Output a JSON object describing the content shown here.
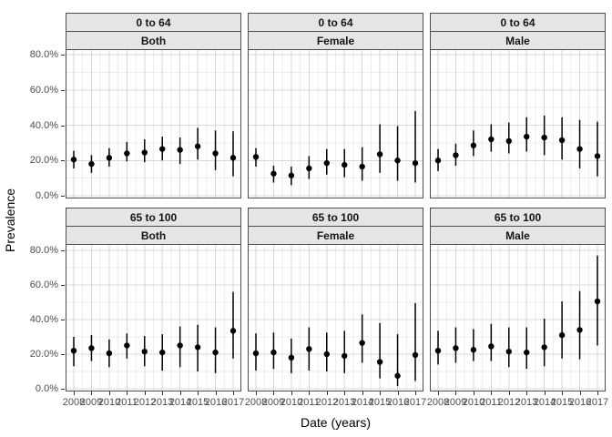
{
  "chart_data": {
    "type": "scatter",
    "subtype": "point-range (point estimate with vertical error bar)",
    "xlabel": "Date (years)",
    "ylabel": "Prevalence",
    "x_labels": [
      "2008",
      "2009",
      "2010",
      "2011",
      "2012",
      "2013",
      "2014",
      "2015",
      "2016",
      "2017"
    ],
    "y_tick_labels": [
      "80.0%",
      "60.0%",
      "40.0%",
      "20.0%",
      "0.0%"
    ],
    "ylim": [
      0,
      80
    ],
    "y_unit": "percent",
    "grid": "on",
    "legend": "none",
    "facet_row_labels": [
      "0 to 64",
      "65 to 100"
    ],
    "facet_col_labels": [
      "Both",
      "Female",
      "Male"
    ],
    "facets": [
      {
        "age_group": "0 to 64",
        "sex": "Both",
        "years": [
          2008,
          2009,
          2010,
          2011,
          2012,
          2013,
          2014,
          2015,
          2016,
          2017
        ],
        "values": [
          20.5,
          18.0,
          21.5,
          24.0,
          24.5,
          26.5,
          26.0,
          28.0,
          24.0,
          21.5
        ],
        "lower": [
          15.5,
          13.0,
          16.5,
          19.5,
          19.0,
          20.0,
          18.0,
          20.5,
          14.5,
          11.0
        ],
        "upper": [
          25.5,
          23.0,
          27.0,
          30.5,
          32.0,
          33.5,
          33.0,
          38.5,
          37.0,
          36.5
        ]
      },
      {
        "age_group": "0 to 64",
        "sex": "Female",
        "years": [
          2008,
          2009,
          2010,
          2011,
          2012,
          2013,
          2014,
          2015,
          2016,
          2017
        ],
        "values": [
          22.0,
          12.5,
          11.5,
          15.5,
          18.5,
          17.5,
          16.5,
          23.5,
          20.0,
          18.5
        ],
        "lower": [
          16.5,
          7.5,
          6.0,
          9.5,
          12.0,
          10.5,
          8.5,
          13.0,
          8.5,
          7.5
        ],
        "upper": [
          27.0,
          17.0,
          16.5,
          22.5,
          26.5,
          26.5,
          27.5,
          40.5,
          39.5,
          48.0
        ]
      },
      {
        "age_group": "0 to 64",
        "sex": "Male",
        "years": [
          2008,
          2009,
          2010,
          2011,
          2012,
          2013,
          2014,
          2015,
          2016,
          2017
        ],
        "values": [
          20.0,
          23.0,
          28.5,
          32.0,
          31.0,
          33.5,
          33.0,
          31.5,
          26.5,
          22.5
        ],
        "lower": [
          14.0,
          17.0,
          22.5,
          25.0,
          24.0,
          25.0,
          23.0,
          20.5,
          15.5,
          11.0
        ],
        "upper": [
          26.5,
          29.5,
          37.0,
          40.5,
          41.5,
          44.5,
          45.5,
          44.5,
          43.0,
          42.0
        ]
      },
      {
        "age_group": "65 to 100",
        "sex": "Both",
        "years": [
          2008,
          2009,
          2010,
          2011,
          2012,
          2013,
          2014,
          2015,
          2016,
          2017
        ],
        "values": [
          22.0,
          23.5,
          20.5,
          25.0,
          21.5,
          21.0,
          25.0,
          24.0,
          21.0,
          33.5
        ],
        "lower": [
          13.0,
          16.0,
          12.5,
          17.5,
          13.0,
          10.5,
          12.5,
          10.0,
          9.0,
          17.5
        ],
        "upper": [
          30.0,
          31.0,
          28.5,
          32.0,
          30.5,
          31.5,
          36.0,
          37.0,
          35.5,
          56.0
        ]
      },
      {
        "age_group": "65 to 100",
        "sex": "Female",
        "years": [
          2008,
          2009,
          2010,
          2011,
          2012,
          2013,
          2014,
          2015,
          2016,
          2017
        ],
        "values": [
          20.5,
          21.0,
          18.0,
          23.0,
          20.0,
          19.0,
          26.5,
          15.5,
          7.5,
          19.5
        ],
        "lower": [
          10.5,
          11.5,
          9.0,
          10.5,
          10.0,
          9.0,
          15.0,
          6.0,
          1.5,
          4.5
        ],
        "upper": [
          32.0,
          32.5,
          29.0,
          35.5,
          32.5,
          33.5,
          43.0,
          38.0,
          31.5,
          49.5
        ]
      },
      {
        "age_group": "65 to 100",
        "sex": "Male",
        "years": [
          2008,
          2009,
          2010,
          2011,
          2012,
          2013,
          2014,
          2015,
          2016,
          2017
        ],
        "values": [
          22.0,
          23.5,
          22.5,
          24.5,
          21.5,
          21.0,
          24.0,
          31.0,
          34.0,
          50.5
        ],
        "lower": [
          14.0,
          15.0,
          16.0,
          16.0,
          12.5,
          11.5,
          13.0,
          17.5,
          17.0,
          25.0
        ],
        "upper": [
          33.5,
          35.5,
          34.5,
          37.5,
          35.5,
          35.5,
          40.5,
          50.5,
          56.5,
          77.0
        ]
      }
    ]
  },
  "colors": {
    "point": "#000000",
    "error_bar": "#000000",
    "strip_background": "#E5E5E5",
    "panel_border": "#4D4D4D",
    "grid_major": "#D9D9D9",
    "grid_minor": "#EDEDED",
    "axis_text": "#4D4D4D",
    "tick_mark": "#333333",
    "background": "#FFFFFF"
  }
}
